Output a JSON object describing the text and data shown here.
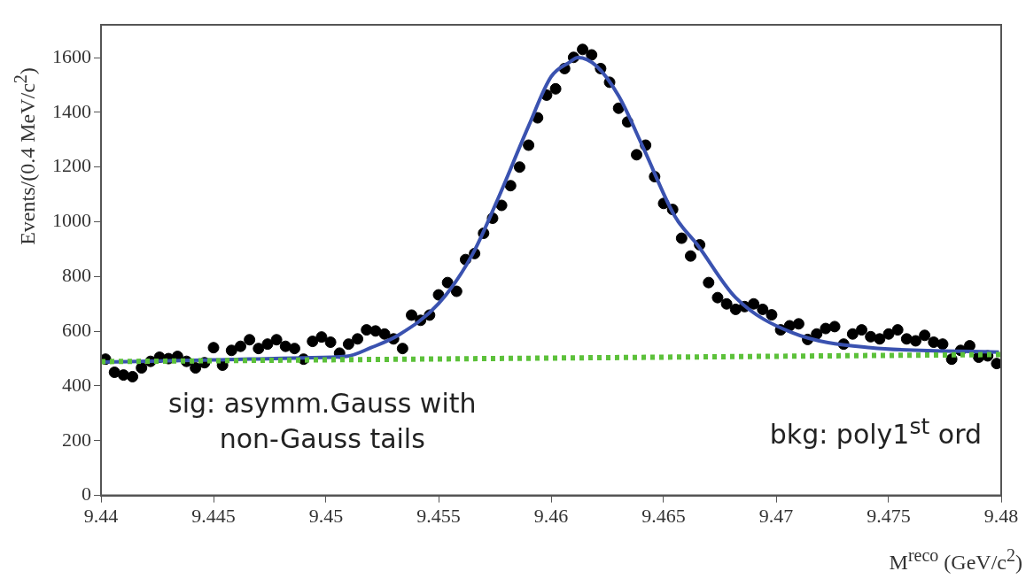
{
  "chart_data": {
    "type": "scatter",
    "xlabel": "M$^{reco}$ (GeV/c$^{2}$)",
    "ylabel": "Events/(0.4 MeV/c$^{2}$)",
    "xlim": [
      9.44,
      9.48
    ],
    "xticks": [
      9.44,
      9.445,
      9.45,
      9.455,
      9.46,
      9.465,
      9.47,
      9.475,
      9.48
    ],
    "ylim": [
      0,
      1720
    ],
    "yticks": [
      0,
      200,
      400,
      600,
      800,
      1000,
      1200,
      1400,
      1600
    ],
    "grid": false,
    "legend": false,
    "annotations": [
      "sig: asymm.Gauss with\nnon-Gauss tails",
      "bkg: poly1$^{st}$ ord"
    ],
    "series": [
      {
        "color": "#000000",
        "marker": "circle",
        "x": [
          9.4402,
          9.4406,
          9.441,
          9.4414,
          9.4418,
          9.4422,
          9.4426,
          9.443,
          9.4434,
          9.4438,
          9.4442,
          9.4446,
          9.445,
          9.4454,
          9.4458,
          9.4462,
          9.4466,
          9.447,
          9.4474,
          9.4478,
          9.4482,
          9.4486,
          9.449,
          9.4494,
          9.4498,
          9.4502,
          9.4506,
          9.451,
          9.4514,
          9.4518,
          9.4522,
          9.4526,
          9.453,
          9.4534,
          9.4538,
          9.4542,
          9.4546,
          9.455,
          9.4554,
          9.4558,
          9.4562,
          9.4566,
          9.457,
          9.4574,
          9.4578,
          9.4582,
          9.4586,
          9.459,
          9.4594,
          9.4598,
          9.4602,
          9.4606,
          9.461,
          9.4614,
          9.4618,
          9.4622,
          9.4626,
          9.463,
          9.4634,
          9.4638,
          9.4642,
          9.4646,
          9.465,
          9.4654,
          9.4658,
          9.4662,
          9.4666,
          9.467,
          9.4674,
          9.4678,
          9.4682,
          9.4686,
          9.469,
          9.4694,
          9.4698,
          9.4702,
          9.4706,
          9.471,
          9.4714,
          9.4718,
          9.4722,
          9.4726,
          9.473,
          9.4734,
          9.4738,
          9.4742,
          9.4746,
          9.475,
          9.4754,
          9.4758,
          9.4762,
          9.4766,
          9.477,
          9.4774,
          9.4778,
          9.4782,
          9.4786,
          9.479,
          9.4794,
          9.4798
        ],
        "values": [
          498,
          450,
          440,
          434,
          466,
          490,
          505,
          500,
          508,
          490,
          466,
          485,
          540,
          476,
          530,
          545,
          569,
          537,
          553,
          569,
          545,
          537,
          498,
          563,
          579,
          560,
          520,
          553,
          572,
          605,
          601,
          590,
          572,
          537,
          659,
          640,
          659,
          733,
          778,
          746,
          862,
          884,
          958,
          1013,
          1060,
          1132,
          1200,
          1280,
          1380,
          1463,
          1486,
          1560,
          1601,
          1630,
          1610,
          1560,
          1510,
          1415,
          1365,
          1245,
          1280,
          1165,
          1067,
          1045,
          940,
          875,
          916,
          778,
          723,
          700,
          680,
          690,
          700,
          680,
          660,
          605,
          620,
          627,
          570,
          590,
          610,
          617,
          553,
          590,
          605,
          580,
          572,
          590,
          605,
          572,
          565,
          585,
          560,
          553,
          498,
          530,
          547,
          505,
          510,
          482
        ]
      },
      {
        "type": "line",
        "color": "#3a52b0",
        "x": [
          9.44,
          9.445,
          9.449,
          9.4509,
          9.452,
          9.4532,
          9.455,
          9.4565,
          9.4576,
          9.459,
          9.46,
          9.4608,
          9.4612,
          9.462,
          9.463,
          9.4641,
          9.4655,
          9.4665,
          9.4682,
          9.4707,
          9.4742,
          9.4799
        ],
        "values": [
          487,
          495,
          503,
          508,
          540,
          585,
          701,
          880,
          1077,
          1350,
          1530,
          1582,
          1600,
          1570,
          1460,
          1270,
          1020,
          916,
          723,
          595,
          540,
          524
        ]
      },
      {
        "type": "line",
        "color": "#5cc13a",
        "line_style": "dotted",
        "x": [
          9.44,
          9.48
        ],
        "values": [
          489,
          515
        ]
      }
    ]
  }
}
